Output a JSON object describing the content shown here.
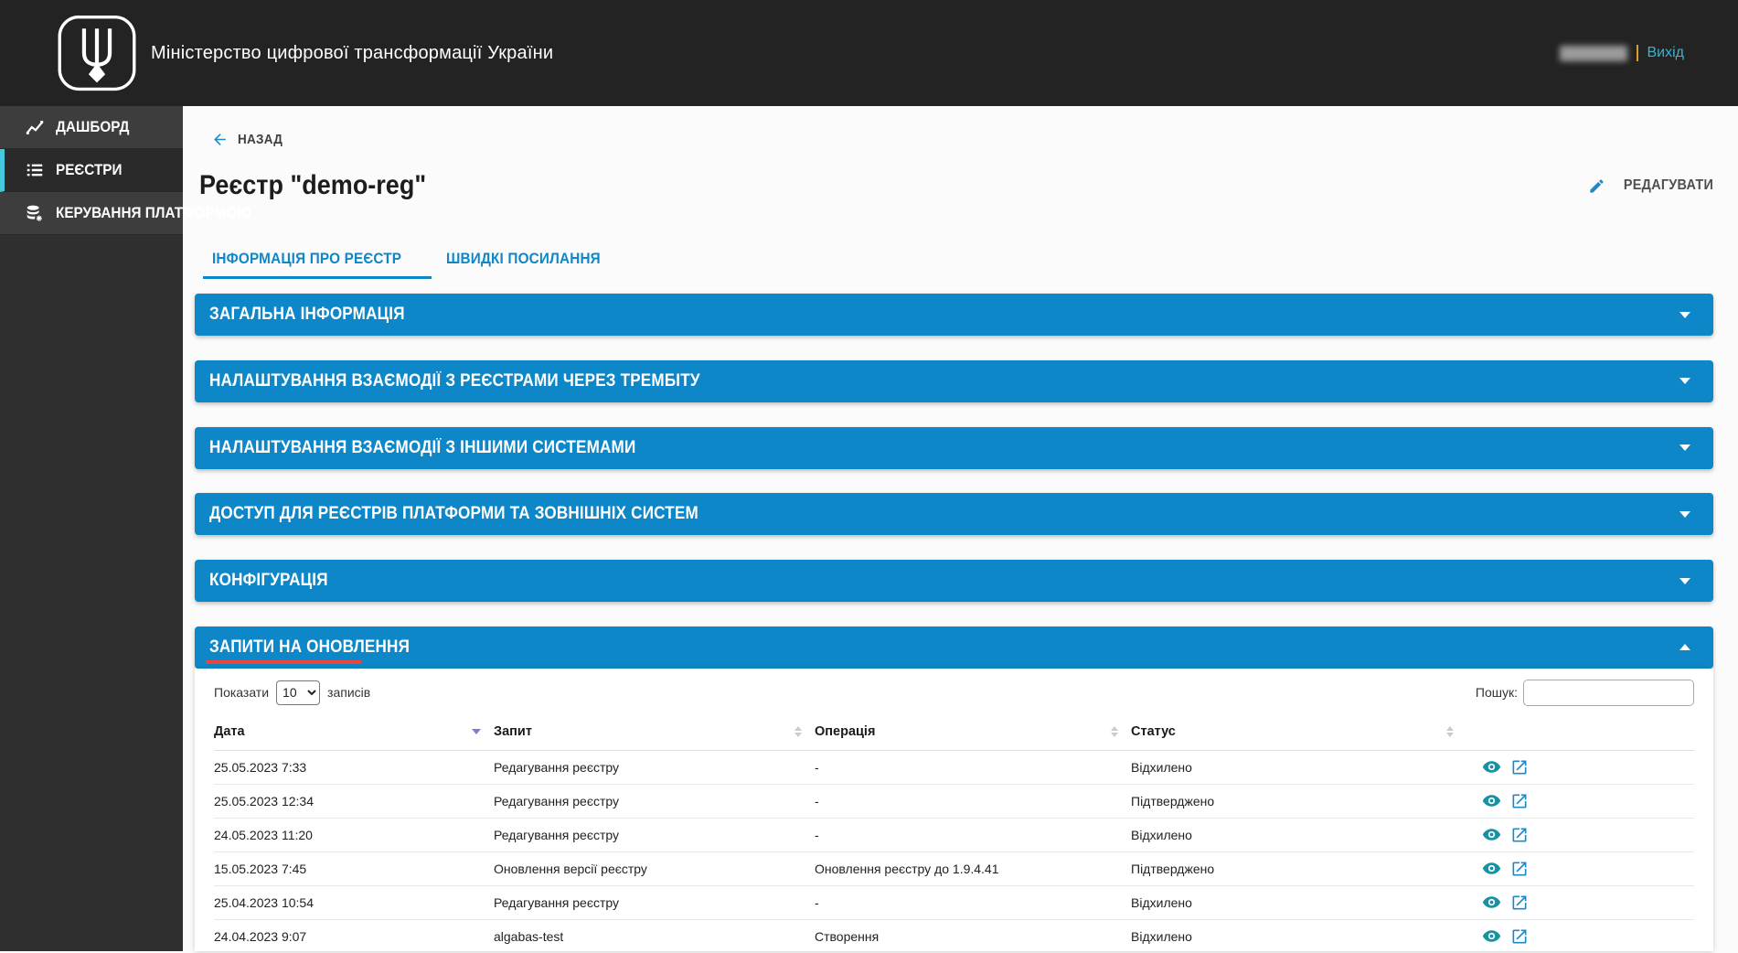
{
  "colors": {
    "header_bg": "#232323",
    "sidebar_bg": "#2f2f2f",
    "sidebar_item_bg": "#3d3d3d",
    "sidebar_active_bg": "#2a2a2a",
    "active_stripe": "#45c7dc",
    "accent_blue": "#0e87c8",
    "link_blue": "#1e88c9",
    "logout_cyan": "#35b5d6",
    "separator_orange": "#dd9b2e",
    "red_annotation": "#e8473f",
    "eye_teal": "#1792a5",
    "sort_active": "#7b7fd4",
    "text_dark": "#212121"
  },
  "header": {
    "logo_icon": "trident-logo",
    "app_title": "Міністерство цифрової трансформації України",
    "user_name_redacted": "",
    "logout_label": "Вихід"
  },
  "sidebar": {
    "items": [
      {
        "name": "dashboard",
        "icon": "dashboard-icon",
        "label": "ДАШБОРД",
        "active": false
      },
      {
        "name": "registries",
        "icon": "registries-icon",
        "label": "РЕЄСТРИ",
        "active": true
      },
      {
        "name": "platform-management",
        "icon": "platform-icon",
        "label": "КЕРУВАННЯ ПЛАТФОРМОЮ",
        "active": false
      }
    ]
  },
  "page": {
    "back_label": "НАЗАД",
    "back_icon": "back-arrow-icon",
    "title": "Реєстр \"demo-reg\"",
    "edit_label": "РЕДАГУВАТИ",
    "edit_icon": "edit-pencil-icon",
    "tabs": [
      {
        "name": "registry-info",
        "label": "ІНФОРМАЦІЯ ПРО РЕЄСТР",
        "active": true
      },
      {
        "name": "quick-links",
        "label": "ШВИДКІ ПОСИЛАННЯ",
        "active": false
      }
    ],
    "accordions": [
      {
        "name": "general-info",
        "label": "ЗАГАЛЬНА ІНФОРМАЦІЯ",
        "expanded": false
      },
      {
        "name": "trembita-registries",
        "label": "НАЛАШТУВАННЯ ВЗАЄМОДІЇ З РЕЄСТРАМИ ЧЕРЕЗ ТРЕМБІТУ",
        "expanded": false
      },
      {
        "name": "other-systems",
        "label": "НАЛАШТУВАННЯ ВЗАЄМОДІЇ З ІНШИМИ СИСТЕМАМИ",
        "expanded": false
      },
      {
        "name": "access-external",
        "label": "ДОСТУП ДЛЯ РЕЄСТРІВ ПЛАТФОРМИ ТА ЗОВНІШНІХ СИСТЕМ",
        "expanded": false
      },
      {
        "name": "configuration",
        "label": "КОНФІГУРАЦІЯ",
        "expanded": false
      },
      {
        "name": "update-requests",
        "label": "ЗАПИТИ НА ОНОВЛЕННЯ",
        "expanded": true,
        "annotated": true
      }
    ]
  },
  "requests_panel": {
    "show_label": "Показати",
    "page_size_value": "10",
    "page_size_options": [
      "10"
    ],
    "records_label": "записів",
    "search_label": "Пошук:",
    "search_value": "",
    "table": {
      "columns": [
        "Дата",
        "Запит",
        "Операція",
        "Статус"
      ],
      "sorted_column": "Дата",
      "sort_direction": "desc",
      "row_action_icons": [
        "eye-icon",
        "open-in-new-icon"
      ],
      "rows": [
        {
          "date": "25.05.2023 7:33",
          "request": "Редагування реєстру",
          "operation": "-",
          "status": "Відхилено"
        },
        {
          "date": "25.05.2023 12:34",
          "request": "Редагування реєстру",
          "operation": "-",
          "status": "Підтверджено"
        },
        {
          "date": "24.05.2023 11:20",
          "request": "Редагування реєстру",
          "operation": "-",
          "status": "Відхилено"
        },
        {
          "date": "15.05.2023 7:45",
          "request": "Оновлення версії реєстру",
          "operation": "Оновлення реєстру до 1.9.4.41",
          "status": "Підтверджено"
        },
        {
          "date": "25.04.2023 10:54",
          "request": "Редагування реєстру",
          "operation": "-",
          "status": "Відхилено"
        },
        {
          "date": "24.04.2023 9:07",
          "request": "algabas-test",
          "operation": "Створення",
          "status": "Відхилено"
        }
      ]
    }
  }
}
